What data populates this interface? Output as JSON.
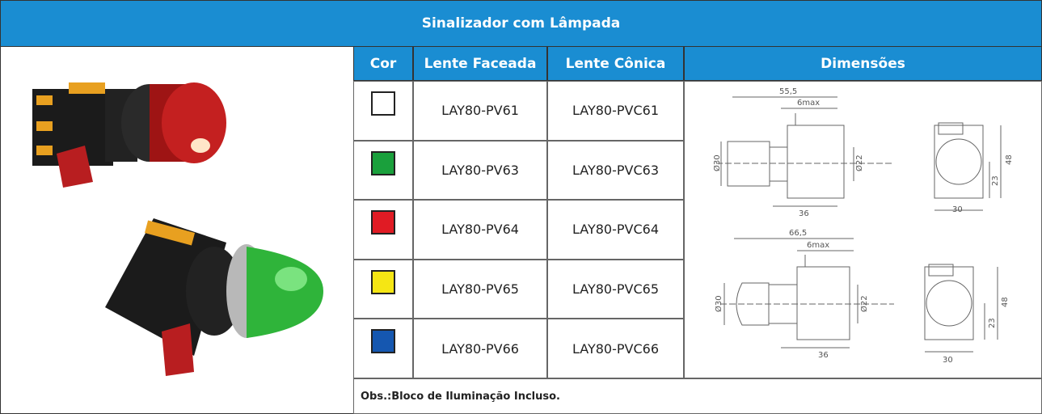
{
  "header": {
    "title": "Sinalizador com Lâmpada"
  },
  "table": {
    "columns": [
      "Cor",
      "Lente Faceada",
      "Lente Cônica",
      "Dimensões"
    ],
    "rows": [
      {
        "color": "#ffffff",
        "faceada": "LAY80-PV61",
        "conica": "LAY80-PVC61"
      },
      {
        "color": "#1aa03c",
        "faceada": "LAY80-PV63",
        "conica": "LAY80-PVC63"
      },
      {
        "color": "#e01b24",
        "faceada": "LAY80-PV64",
        "conica": "LAY80-PVC64"
      },
      {
        "color": "#f5e614",
        "faceada": "LAY80-PV65",
        "conica": "LAY80-PVC65"
      },
      {
        "color": "#1557b0",
        "faceada": "LAY80-PV66",
        "conica": "LAY80-PVC66"
      }
    ],
    "note": "Obs.:Bloco de Iluminação Incluso."
  },
  "drawings": [
    {
      "length": "55,5",
      "max": "6max",
      "d30": "Ø30",
      "d22": "Ø22",
      "depth": "36",
      "height": "48",
      "half": "23",
      "width": "30"
    },
    {
      "length": "66,5",
      "max": "6max",
      "d30": "Ø30",
      "d22": "Ø22",
      "depth": "36",
      "height": "48",
      "half": "23",
      "width": "30"
    }
  ]
}
